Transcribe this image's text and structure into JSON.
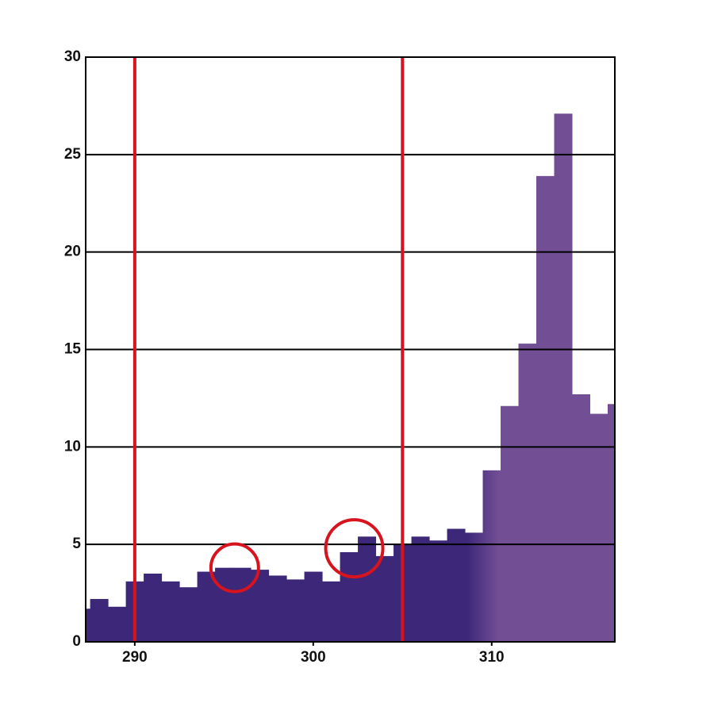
{
  "chart_data": {
    "type": "histogram",
    "bins": [
      286.5,
      287.5,
      288.5,
      289.5,
      290.5,
      291.5,
      292.5,
      293.5,
      294.5,
      295.5,
      296.5,
      297.5,
      298.5,
      299.5,
      300.5,
      301.5,
      302.5,
      303.5,
      304.5,
      305.5,
      306.5,
      307.5,
      308.5,
      309.5,
      310.5,
      311.5,
      312.5,
      313.5,
      314.5,
      315.5,
      316.5,
      317.5
    ],
    "values": [
      1.7,
      2.2,
      1.8,
      3.1,
      3.5,
      3.1,
      2.8,
      3.6,
      3.8,
      3.8,
      3.7,
      3.4,
      3.2,
      3.6,
      3.1,
      4.6,
      5.4,
      4.4,
      5.0,
      5.4,
      5.2,
      5.8,
      5.6,
      8.8,
      12.1,
      15.3,
      23.9,
      27.1,
      12.7,
      11.7,
      12.2
    ],
    "colors": [
      "#3d2779",
      "#724e95"
    ],
    "xlim": [
      287.25,
      316.9
    ],
    "xticks": [
      290,
      300,
      310
    ],
    "ylim": [
      0,
      30
    ],
    "yticks": [
      0,
      5,
      10,
      15,
      20,
      25,
      30
    ],
    "grid": true,
    "vlines": [
      290,
      305
    ],
    "highlights": [
      {
        "x": 295.6,
        "y": 3.8
      },
      {
        "x": 302.3,
        "y": 4.8
      }
    ],
    "annotation_color": "#d7141e"
  }
}
